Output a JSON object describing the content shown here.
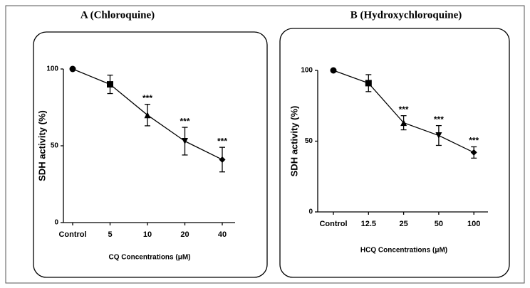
{
  "chart_data": [
    {
      "type": "line",
      "title": "A (Chloroquine)",
      "ylabel": "SDH activity (%)",
      "xlabel": "CQ Concentrations (μM)",
      "categories": [
        "Control",
        "5",
        "10",
        "20",
        "40"
      ],
      "values": [
        100,
        90,
        70,
        53,
        41
      ],
      "errors": [
        0,
        6,
        7,
        9,
        8
      ],
      "significance": [
        null,
        null,
        "***",
        "***",
        "***"
      ],
      "markers": [
        "circle",
        "square",
        "triangle",
        "triangle-down",
        "diamond"
      ],
      "color": "#000000",
      "ylim": [
        0,
        100
      ],
      "yticks": [
        0,
        50,
        100
      ]
    },
    {
      "type": "line",
      "title": "B (Hydroxychloroquine)",
      "ylabel": "SDH activity (%)",
      "xlabel": "HCQ Concentrations (μM)",
      "categories": [
        "Control",
        "12.5",
        "25",
        "50",
        "100"
      ],
      "values": [
        100,
        91,
        63,
        54,
        42
      ],
      "errors": [
        0,
        6,
        5,
        7,
        4
      ],
      "significance": [
        null,
        null,
        "***",
        "***",
        "***"
      ],
      "markers": [
        "circle",
        "square",
        "triangle",
        "triangle-down",
        "diamond"
      ],
      "color": "#000000",
      "ylim": [
        0,
        100
      ],
      "yticks": [
        0,
        50,
        100
      ]
    }
  ]
}
